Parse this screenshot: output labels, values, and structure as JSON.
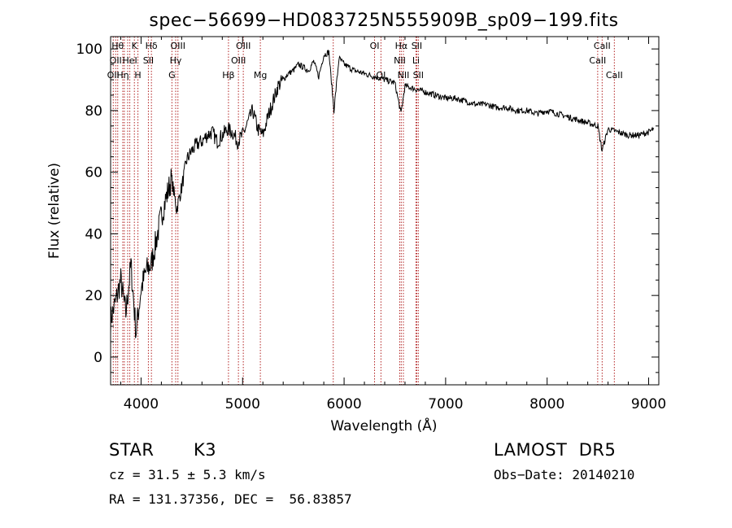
{
  "chart_data": {
    "type": "line",
    "title": "spec−56699−HD083725N555909B_sp09−199.fits",
    "xlabel": "Wavelength (Å)",
    "ylabel": "Flux (relative)",
    "xlim": [
      3700,
      9100
    ],
    "ylim": [
      -9,
      104
    ],
    "x_ticks": [
      4000,
      5000,
      6000,
      7000,
      8000,
      9000
    ],
    "y_ticks": [
      0,
      20,
      40,
      60,
      80,
      100
    ],
    "grid": false,
    "line_color": "#000000",
    "marker_color": "#b22222",
    "series": [
      {
        "x": [
          3700,
          3750,
          3800,
          3850,
          3900,
          3950,
          4000,
          4050,
          4100,
          4150,
          4200,
          4250,
          4300,
          4350,
          4400,
          4450,
          4500,
          4550,
          4600,
          4650,
          4700,
          4750,
          4800,
          4850,
          4900,
          4950,
          5000,
          5050,
          5100,
          5150,
          5200,
          5250,
          5300,
          5350,
          5400,
          5450,
          5500,
          5550,
          5600,
          5650,
          5700,
          5750,
          5800,
          5850,
          5900,
          5950,
          6000,
          6100,
          6200,
          6300,
          6400,
          6500,
          6560,
          6600,
          6700,
          6800,
          6900,
          7000,
          7100,
          7200,
          7300,
          7400,
          7500,
          7600,
          7700,
          7800,
          7900,
          8000,
          8100,
          8200,
          8300,
          8400,
          8500,
          8540,
          8600,
          8700,
          8800,
          8900,
          9000,
          9050
        ],
        "y": [
          12,
          18,
          25,
          14,
          30,
          8,
          22,
          28,
          30,
          38,
          46,
          52,
          58,
          48,
          55,
          64,
          67,
          69,
          70,
          72,
          73,
          70,
          72,
          74,
          73,
          70,
          72,
          76,
          80,
          74,
          72,
          78,
          83,
          88,
          90,
          92,
          93,
          95,
          94,
          93,
          96,
          91,
          98,
          99,
          80,
          97,
          95,
          93,
          92,
          91,
          90,
          89,
          79,
          88,
          87,
          86,
          85,
          84,
          84,
          83,
          82,
          82,
          81,
          81,
          80,
          80,
          79,
          80,
          79,
          78,
          77,
          76,
          75,
          67,
          74,
          73,
          72,
          72,
          73,
          74
        ]
      }
    ],
    "lines": [
      {
        "w": 3726,
        "label": "OII",
        "row": 2
      },
      {
        "w": 3750,
        "label": "OII",
        "row": 1
      },
      {
        "w": 3770,
        "label": "Hθ",
        "row": 0
      },
      {
        "w": 3820,
        "label": "Hη",
        "row": 2
      },
      {
        "w": 3835,
        "label": "",
        "row": -1
      },
      {
        "w": 3868,
        "label": "",
        "row": -1
      },
      {
        "w": 3889,
        "label": "HeI",
        "row": 1
      },
      {
        "w": 3934,
        "label": "K",
        "row": 0
      },
      {
        "w": 3969,
        "label": "H",
        "row": 2
      },
      {
        "w": 4072,
        "label": "SII",
        "row": 1
      },
      {
        "w": 4102,
        "label": "Hδ",
        "row": 0
      },
      {
        "w": 4304,
        "label": "G",
        "row": 2
      },
      {
        "w": 4341,
        "label": "Hγ",
        "row": 1
      },
      {
        "w": 4363,
        "label": "OIII",
        "row": 0
      },
      {
        "w": 4861,
        "label": "Hβ",
        "row": 2
      },
      {
        "w": 4959,
        "label": "OIII",
        "row": 1
      },
      {
        "w": 5007,
        "label": "OIII",
        "row": 0
      },
      {
        "w": 5175,
        "label": "Mg",
        "row": 2
      },
      {
        "w": 5893,
        "label": "",
        "row": -1
      },
      {
        "w": 6300,
        "label": "OI",
        "row": 0
      },
      {
        "w": 6363,
        "label": "OI",
        "row": 2
      },
      {
        "w": 6548,
        "label": "NII",
        "row": 1
      },
      {
        "w": 6563,
        "label": "Hα",
        "row": 0
      },
      {
        "w": 6584,
        "label": "NII",
        "row": 2
      },
      {
        "w": 6708,
        "label": "Li",
        "row": 1
      },
      {
        "w": 6716,
        "label": "SII",
        "row": 0
      },
      {
        "w": 6731,
        "label": "SII",
        "row": 2
      },
      {
        "w": 8498,
        "label": "CaII",
        "row": 1
      },
      {
        "w": 8542,
        "label": "CaII",
        "row": 0
      },
      {
        "w": 8662,
        "label": "CaII",
        "row": 2
      }
    ]
  },
  "info": {
    "obj_class": "STAR",
    "subclass": "K3",
    "survey": "LAMOST  DR5",
    "redshift": "cz = 31.5 ± 5.3 km/s",
    "obs_date": "Obs−Date: 20140210",
    "coords": "RA = 131.37356, DEC =  56.83857"
  }
}
